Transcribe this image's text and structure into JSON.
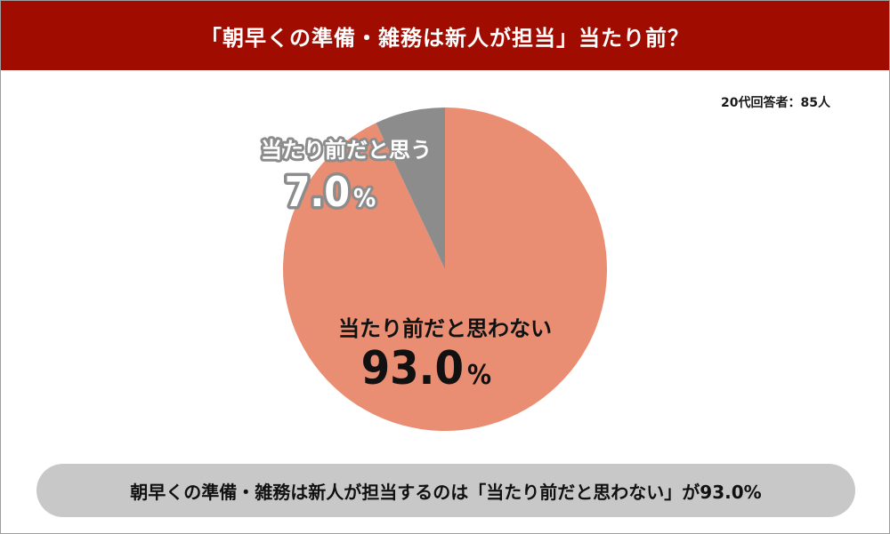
{
  "header": {
    "title": "「朝早くの準備・雑務は新人が担当」当たり前？"
  },
  "sample_note": "20代回答者：85人",
  "summary": "朝早くの準備・雑務は新人が担当するのは「当たり前だと思わない」が93.0%",
  "colors": {
    "header_bg": "#a10c00",
    "slice_no": "#e98e72",
    "slice_yes": "#8c8c8c",
    "summary_bg": "#c8c8c8"
  },
  "chart_data": {
    "type": "pie",
    "title": "「朝早くの準備・雑務は新人が担当」当たり前？",
    "slices": [
      {
        "label": "当たり前だと思わない",
        "value": 93.0,
        "value_label": "93.0",
        "unit": "%",
        "color": "#e98e72"
      },
      {
        "label": "当たり前だと思う",
        "value": 7.0,
        "value_label": "7.0",
        "unit": "%",
        "color": "#8c8c8c"
      }
    ],
    "start": "12 o'clock",
    "direction": "clockwise"
  }
}
